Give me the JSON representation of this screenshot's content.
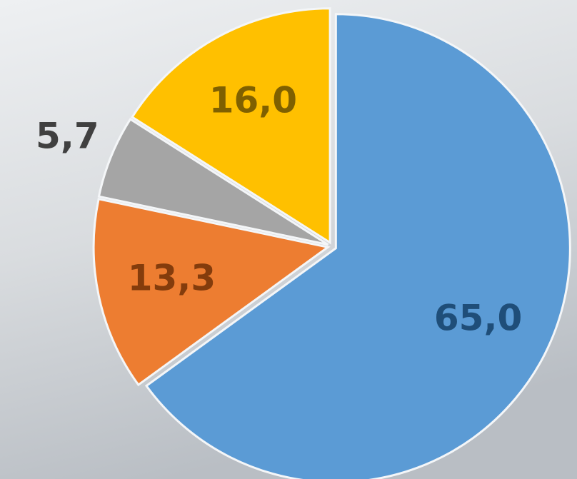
{
  "chart_data": {
    "type": "pie",
    "values": [
      65.0,
      13.3,
      5.7,
      16.0
    ],
    "value_labels": [
      "65,0",
      "13,3",
      "5,7",
      "16,0"
    ],
    "colors": [
      "#5b9bd5",
      "#ed7d31",
      "#a5a5a5",
      "#ffc000"
    ],
    "label_colors": [
      "#1f4e79",
      "#843c0c",
      "#404040",
      "#7f6000"
    ]
  }
}
